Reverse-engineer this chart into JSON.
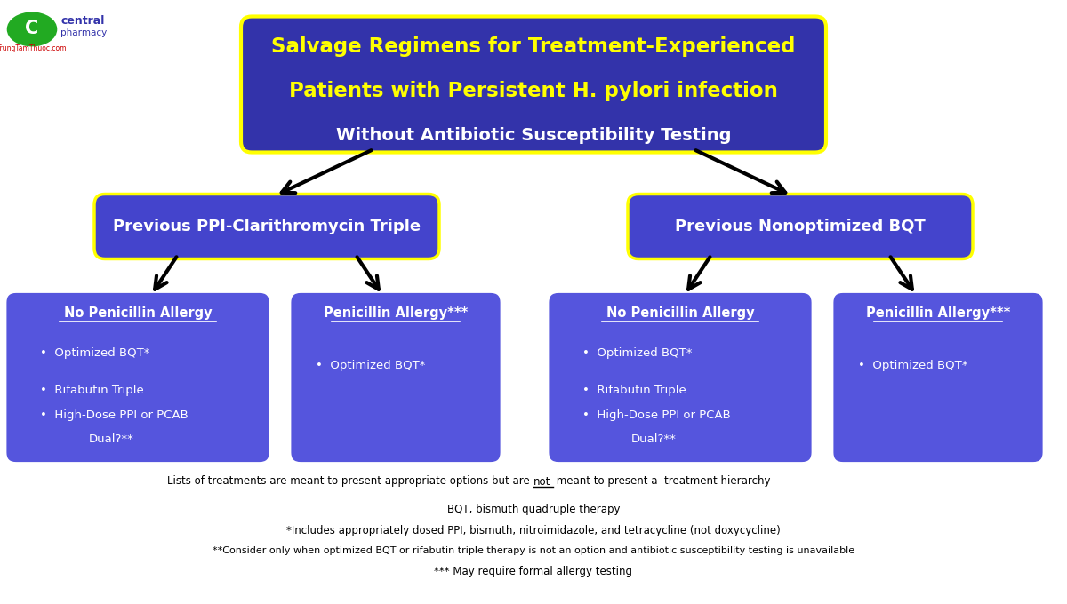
{
  "bg_color": "#ffffff",
  "title_box_color": "#3333aa",
  "title_box_edge": "#ffff00",
  "title_line1": "Salvage Regimens for Treatment-Experienced",
  "title_line2": "Patients with Persistent ",
  "title_line2_italic": "H. pylori",
  "title_line2_end": " infection",
  "title_line3": "Without Antibiotic Susceptibility Testing",
  "title_text_color1": "#ffff00",
  "title_text_color3": "#ffffff",
  "mid_box_color": "#4444cc",
  "mid_box_edge": "#ffff00",
  "mid_text_color": "#ffffff",
  "leaf_box_color": "#5555dd",
  "leaf_box_edge": "#ffffff",
  "leaf_text_color": "#ffffff",
  "mid_left_label": "Previous PPI-Clarithromycin Triple",
  "mid_right_label": "Previous Nonoptimized BQT",
  "leaf1_header": "No Penicillin Allergy",
  "leaf1_items": [
    "Optimized BQT*",
    "Rifabutin Triple",
    "High-Dose PPI or PCAB\nDual?**"
  ],
  "leaf2_header": "Penicillin Allergy***",
  "leaf2_items": [
    "Optimized BQT*"
  ],
  "leaf3_header": "No Penicillin Allergy",
  "leaf3_items": [
    "Optimized BQT*",
    "Rifabutin Triple",
    "High-Dose PPI or PCAB\nDual?**"
  ],
  "leaf4_header": "Penicillin Allergy***",
  "leaf4_items": [
    "Optimized BQT*"
  ],
  "footnote1": "Lists of treatments are meant to present appropriate options but are ",
  "footnote1_underline": "not",
  "footnote1_end": " meant to present a  treatment hierarchy",
  "footnote2": "BQT, bismuth quadruple therapy",
  "footnote3": "*Includes appropriately dosed PPI, bismuth, nitroimidazole, and tetracycline (not doxycycline)",
  "footnote4": "**Consider only when optimized BQT or rifabutin triple therapy is not an option and antibiotic susceptibility testing is unavailable",
  "footnote5": "*** May require formal allergy testing"
}
